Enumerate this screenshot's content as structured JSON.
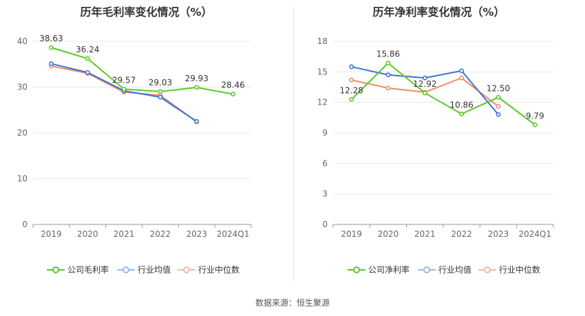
{
  "source_text": "数据来源：恒生聚源",
  "colors": {
    "company": "#5cc828",
    "avg": "#3a73d8",
    "median": "#f08a64"
  },
  "chart_data": [
    {
      "type": "line",
      "title": "历年毛利率变化情况（%）",
      "categories": [
        "2019",
        "2020",
        "2021",
        "2022",
        "2023",
        "2024Q1"
      ],
      "ylim": [
        0,
        40
      ],
      "yticks": [
        0,
        10,
        20,
        30,
        40
      ],
      "grid": true,
      "legend_position": "bottom",
      "series": [
        {
          "name": "公司毛利率",
          "values": [
            38.63,
            36.24,
            29.57,
            29.03,
            29.93,
            28.46
          ],
          "labels": [
            "38.63",
            "36.24",
            "29.57",
            "29.03",
            "29.93",
            "28.46"
          ]
        },
        {
          "name": "行业均值",
          "values": [
            35.1,
            33.2,
            29.2,
            27.8,
            22.5,
            null
          ]
        },
        {
          "name": "行业中位数",
          "values": [
            34.6,
            33.0,
            28.9,
            28.2,
            22.4,
            null
          ]
        }
      ]
    },
    {
      "type": "line",
      "title": "历年净利率变化情况（%）",
      "categories": [
        "2019",
        "2020",
        "2021",
        "2022",
        "2023",
        "2024Q1"
      ],
      "ylim": [
        0,
        18
      ],
      "yticks": [
        0,
        3,
        6,
        9,
        12,
        15,
        18
      ],
      "grid": true,
      "legend_position": "bottom",
      "series": [
        {
          "name": "公司净利率",
          "values": [
            12.28,
            15.86,
            12.92,
            10.86,
            12.5,
            9.79
          ],
          "labels": [
            "12.28",
            "15.86",
            "12.92",
            "10.86",
            "12.50",
            "9.79"
          ]
        },
        {
          "name": "行业均值",
          "values": [
            15.5,
            14.7,
            14.4,
            15.1,
            10.8,
            null
          ]
        },
        {
          "name": "行业中位数",
          "values": [
            14.2,
            13.4,
            13.0,
            14.4,
            11.6,
            null
          ]
        }
      ]
    }
  ]
}
